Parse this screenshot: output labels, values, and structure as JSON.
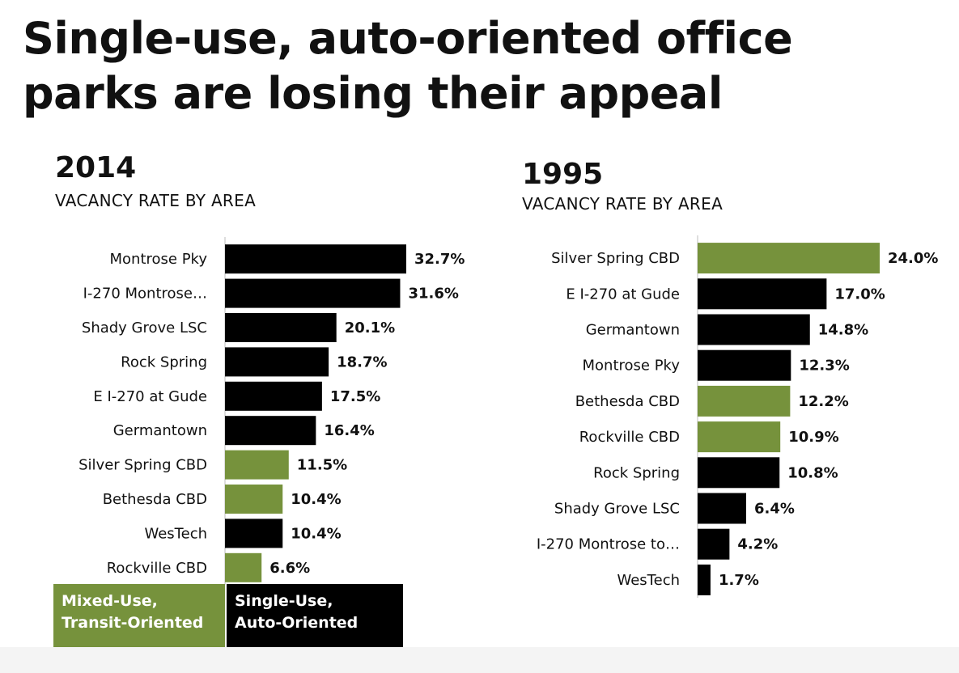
{
  "title_line1": "Single-use, auto-oriented office",
  "title_line2": "parks are losing their appeal",
  "colors": {
    "mixed_use": "#76923c",
    "single_use": "#000000"
  },
  "legend": {
    "mixed_use": [
      "Mixed-Use,",
      "Transit-Oriented"
    ],
    "single_use": [
      "Single-Use,",
      "Auto-Oriented"
    ]
  },
  "chart_data": [
    {
      "type": "bar",
      "orientation": "horizontal",
      "title": "2014",
      "subtitle": "VACANCY RATE BY AREA",
      "xlim": [
        0,
        40
      ],
      "categories": [
        "Montrose Pky",
        "I-270 Montrose…",
        "Shady Grove LSC",
        "Rock Spring",
        "E I-270 at Gude",
        "Germantown",
        "Silver Spring CBD",
        "Bethesda CBD",
        "WesTech",
        "Rockville CBD"
      ],
      "values": [
        32.7,
        31.6,
        20.1,
        18.7,
        17.5,
        16.4,
        11.5,
        10.4,
        10.4,
        6.6
      ],
      "labels": [
        "32.7%",
        "31.6%",
        "20.1%",
        "18.7%",
        "17.5%",
        "16.4%",
        "11.5%",
        "10.4%",
        "10.4%",
        "6.6%"
      ],
      "groups": [
        "single_use",
        "single_use",
        "single_use",
        "single_use",
        "single_use",
        "single_use",
        "mixed_use",
        "mixed_use",
        "single_use",
        "mixed_use"
      ]
    },
    {
      "type": "bar",
      "orientation": "horizontal",
      "title": "1995",
      "subtitle": "VACANCY RATE BY AREA",
      "xlim": [
        0,
        40
      ],
      "categories": [
        "Silver Spring CBD",
        "E I-270 at Gude",
        "Germantown",
        "Montrose Pky",
        "Bethesda CBD",
        "Rockville CBD",
        "Rock Spring",
        "Shady Grove LSC",
        "I-270 Montrose to…",
        "WesTech"
      ],
      "values": [
        24.0,
        17.0,
        14.8,
        12.3,
        12.2,
        10.9,
        10.8,
        6.4,
        4.2,
        1.7
      ],
      "labels": [
        "24.0%",
        "17.0%",
        "14.8%",
        "12.3%",
        "12.2%",
        "10.9%",
        "10.8%",
        "6.4%",
        "4.2%",
        "1.7%"
      ],
      "groups": [
        "mixed_use",
        "single_use",
        "single_use",
        "single_use",
        "mixed_use",
        "mixed_use",
        "single_use",
        "single_use",
        "single_use",
        "single_use"
      ]
    }
  ]
}
